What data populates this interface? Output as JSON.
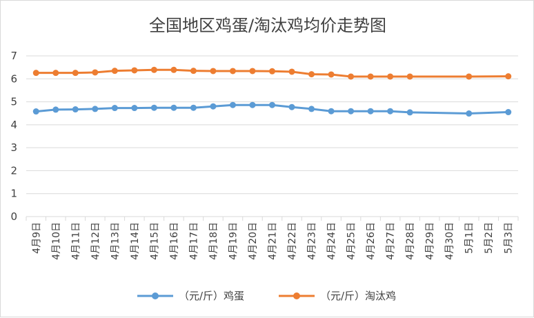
{
  "chart_data": {
    "type": "line",
    "title": "全国地区鸡蛋/淘汰鸡均价走势图",
    "xlabel": "",
    "ylabel": "",
    "ylim": [
      0,
      7
    ],
    "yticks": [
      0,
      1,
      2,
      3,
      4,
      5,
      6,
      7
    ],
    "grid": true,
    "legend_position": "bottom",
    "x": [
      "4月9日",
      "4月10日",
      "4月11日",
      "4月12日",
      "4月13日",
      "4月14日",
      "4月15日",
      "4月16日",
      "4月17日",
      "4月18日",
      "4月19日",
      "4月20日",
      "4月21日",
      "4月22日",
      "4月23日",
      "4月24日",
      "4月25日",
      "4月26日",
      "4月27日",
      "4月28日",
      "4月29日",
      "4月30日",
      "5月1日",
      "5月2日",
      "5月3日"
    ],
    "series": [
      {
        "name": "（元/斤）鸡蛋",
        "color": "#5b9bd5",
        "values": [
          4.58,
          4.66,
          4.67,
          4.69,
          4.73,
          4.73,
          4.74,
          4.74,
          4.74,
          4.8,
          4.86,
          4.86,
          4.86,
          4.77,
          4.69,
          4.59,
          4.59,
          4.59,
          4.59,
          4.54,
          null,
          null,
          4.49,
          null,
          4.55
        ]
      },
      {
        "name": "（元/斤）淘汰鸡",
        "color": "#ed7d31",
        "values": [
          6.26,
          6.26,
          6.26,
          6.28,
          6.35,
          6.37,
          6.39,
          6.39,
          6.35,
          6.34,
          6.34,
          6.34,
          6.33,
          6.31,
          6.2,
          6.19,
          6.1,
          6.1,
          6.1,
          6.1,
          null,
          null,
          6.1,
          null,
          6.11
        ]
      }
    ]
  }
}
